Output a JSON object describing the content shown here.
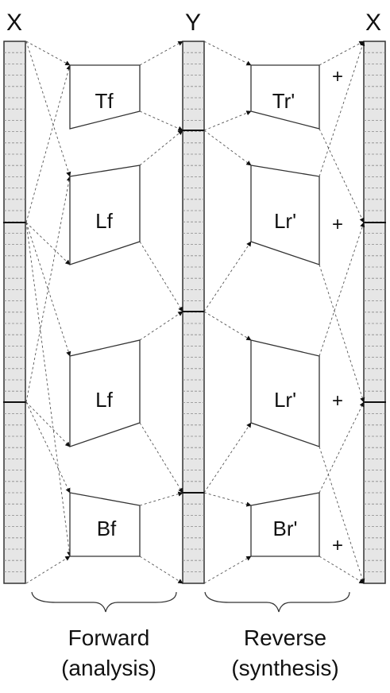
{
  "column_labels": {
    "x_left": "X",
    "y_mid": "Y",
    "x_right": "X"
  },
  "forward_blocks": [
    "Tf",
    "Lf",
    "Lf",
    "Bf"
  ],
  "reverse_blocks": [
    "Tr'",
    "Lr'",
    "Lr'",
    "Br'"
  ],
  "plus_sign": "+",
  "captions": {
    "forward_line1": "Forward",
    "forward_line2": "(analysis)",
    "reverse_line1": "Reverse",
    "reverse_line2": "(synthesis)"
  },
  "colors": {
    "bar_fill": "#e6e6e6",
    "line": "#333333",
    "dashed": "#555555"
  }
}
